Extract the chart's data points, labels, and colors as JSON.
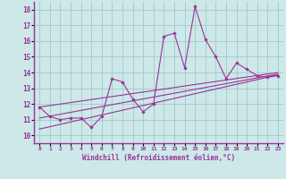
{
  "bg_color": "#cce8e8",
  "grid_color": "#aacccc",
  "line_color": "#993399",
  "marker_color": "#993399",
  "xlabel": "Windchill (Refroidissement éolien,°C)",
  "xlabel_color": "#993399",
  "tick_color": "#993399",
  "ylim": [
    9.5,
    18.5
  ],
  "xlim": [
    -0.5,
    23.5
  ],
  "yticks": [
    10,
    11,
    12,
    13,
    14,
    15,
    16,
    17,
    18
  ],
  "xticks": [
    0,
    1,
    2,
    3,
    4,
    5,
    6,
    7,
    8,
    9,
    10,
    11,
    12,
    13,
    14,
    15,
    16,
    17,
    18,
    19,
    20,
    21,
    22,
    23
  ],
  "line1_x": [
    0,
    1,
    2,
    3,
    4,
    5,
    6,
    7,
    8,
    9,
    10,
    11,
    12,
    13,
    14,
    15,
    16,
    17,
    18,
    19,
    20,
    21,
    22,
    23
  ],
  "line1_y": [
    11.8,
    11.2,
    11.0,
    11.1,
    11.1,
    10.5,
    11.2,
    13.6,
    13.4,
    12.3,
    11.5,
    12.0,
    16.3,
    16.5,
    14.3,
    18.2,
    16.1,
    15.0,
    13.6,
    14.6,
    14.2,
    13.8,
    13.7,
    13.8
  ],
  "line2_x": [
    0,
    23
  ],
  "line2_y": [
    10.4,
    13.85
  ],
  "line3_x": [
    0,
    23
  ],
  "line3_y": [
    11.1,
    13.9
  ],
  "line4_x": [
    0,
    23
  ],
  "line4_y": [
    11.8,
    14.0
  ]
}
